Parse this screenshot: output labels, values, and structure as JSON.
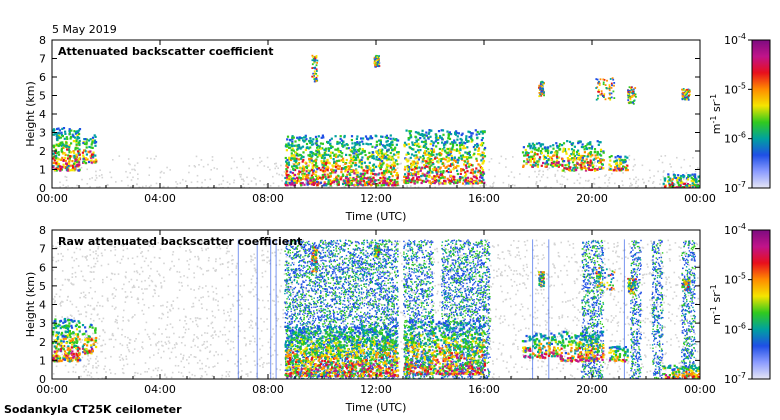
{
  "date_label": "5 May 2019",
  "footer": "Sodankyla CT25K ceilometer",
  "colors": {
    "background": "#ffffff",
    "noise_gray": "#d4d4d4",
    "colormap": [
      "#7d0b80",
      "#c0138a",
      "#e8101c",
      "#ff8c00",
      "#f5e400",
      "#30c91f",
      "#00a0a0",
      "#1f4fe6",
      "#8c9cff",
      "#e6e6f5"
    ]
  },
  "chart_data": [
    {
      "type": "heatmap",
      "title": "Attenuated backscatter coefficient",
      "xlabel": "Time (UTC)",
      "ylabel": "Height (km)",
      "x_ticks": [
        "00:00",
        "04:00",
        "08:00",
        "12:00",
        "16:00",
        "20:00",
        "00:00"
      ],
      "y_ticks": [
        "0",
        "1",
        "2",
        "3",
        "4",
        "5",
        "6",
        "7",
        "8"
      ],
      "xlim_hours": [
        0,
        24
      ],
      "ylim_km": [
        0,
        8
      ],
      "colorbar": {
        "scale": "log",
        "ticks": [
          "10",
          "10",
          "10",
          "10"
        ],
        "tick_exponents": [
          "-7",
          "-6",
          "-5",
          "-4"
        ],
        "label": "m",
        "label_sup1": "-1",
        "label_mid": " sr",
        "label_sup2": "-1"
      }
    },
    {
      "type": "heatmap",
      "title": "Raw attenuated backscatter coefficient",
      "xlabel": "Time (UTC)",
      "ylabel": "Height (km)",
      "x_ticks": [
        "00:00",
        "04:00",
        "08:00",
        "12:00",
        "16:00",
        "20:00",
        "00:00"
      ],
      "y_ticks": [
        "0",
        "1",
        "2",
        "3",
        "4",
        "5",
        "6",
        "7",
        "8"
      ],
      "xlim_hours": [
        0,
        24
      ],
      "ylim_km": [
        0,
        8
      ],
      "colorbar": {
        "scale": "log",
        "ticks": [
          "10",
          "10",
          "10",
          "10"
        ],
        "tick_exponents": [
          "-7",
          "-6",
          "-5",
          "-4"
        ],
        "label": "m",
        "label_sup1": "-1",
        "label_mid": " sr",
        "label_sup2": "-1"
      }
    }
  ]
}
